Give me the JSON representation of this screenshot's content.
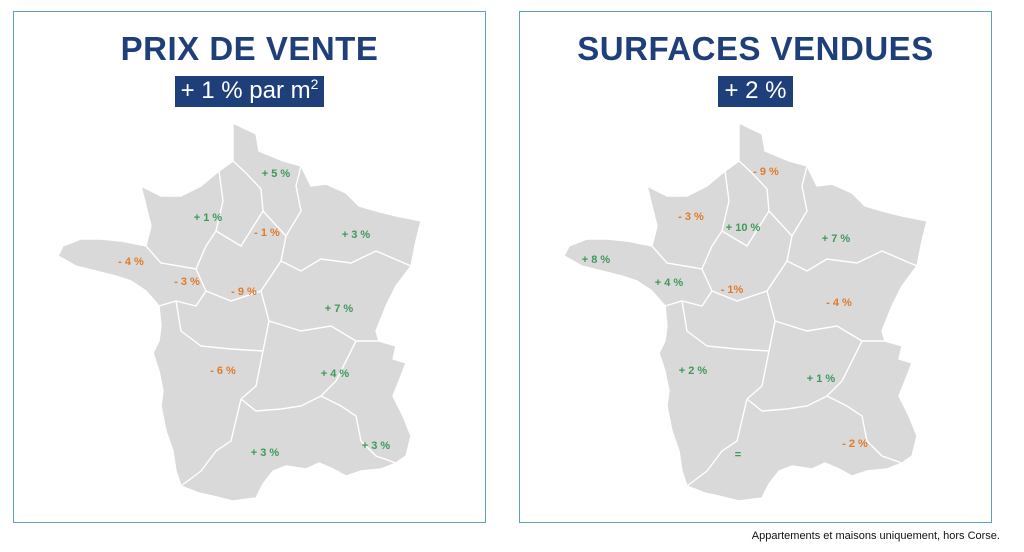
{
  "colors": {
    "title": "#1f3f7a",
    "positive": "#3d9a5a",
    "negative": "#e07b2a",
    "map_fill": "#d9d9d9",
    "frame": "#5aa6b8"
  },
  "panels": [
    {
      "title": "PRIX DE VENTE",
      "subtitle_main": "+ 1 % par m",
      "subtitle_sup": "2",
      "regions": [
        {
          "label": "+ 5 %",
          "sign": "positive"
        },
        {
          "label": "+ 1 %",
          "sign": "positive"
        },
        {
          "label": "- 1 %",
          "sign": "negative"
        },
        {
          "label": "+ 3 %",
          "sign": "positive"
        },
        {
          "label": "- 4 %",
          "sign": "negative"
        },
        {
          "label": "- 3 %",
          "sign": "negative"
        },
        {
          "label": "- 9 %",
          "sign": "negative"
        },
        {
          "label": "+ 7 %",
          "sign": "positive"
        },
        {
          "label": "- 6 %",
          "sign": "negative"
        },
        {
          "label": "+ 4 %",
          "sign": "positive"
        },
        {
          "label": "+ 3 %",
          "sign": "positive"
        },
        {
          "label": "+ 3 %",
          "sign": "positive"
        }
      ]
    },
    {
      "title": "SURFACES VENDUES",
      "subtitle_main": "+ 2 %",
      "subtitle_sup": "",
      "regions": [
        {
          "label": "- 9 %",
          "sign": "negative"
        },
        {
          "label": "- 3 %",
          "sign": "negative"
        },
        {
          "label": "+ 10 %",
          "sign": "positive"
        },
        {
          "label": "+ 7 %",
          "sign": "positive"
        },
        {
          "label": "+ 8 %",
          "sign": "positive"
        },
        {
          "label": "+ 4 %",
          "sign": "positive"
        },
        {
          "label": "- 1%",
          "sign": "negative"
        },
        {
          "label": "- 4 %",
          "sign": "negative"
        },
        {
          "label": "+ 2 %",
          "sign": "positive"
        },
        {
          "label": "+ 1 %",
          "sign": "positive"
        },
        {
          "label": "=",
          "sign": "positive"
        },
        {
          "label": "- 2 %",
          "sign": "negative"
        }
      ]
    }
  ],
  "footnote": "Appartements et maisons uniquement, hors Corse."
}
